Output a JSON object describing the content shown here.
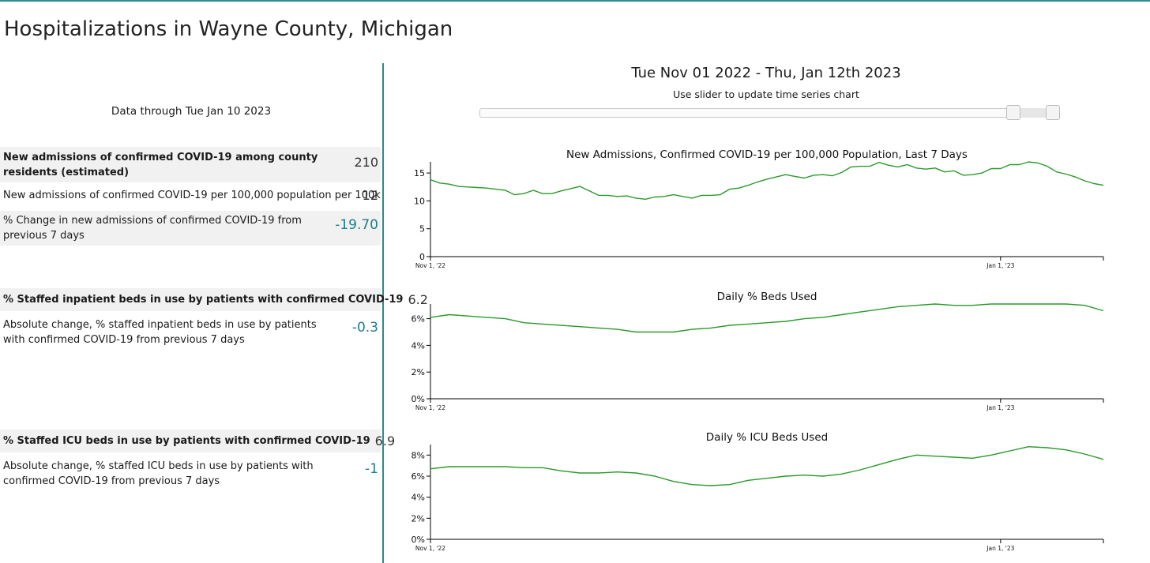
{
  "page": {
    "title": "Hospitalizations in Wayne County, Michigan"
  },
  "summary": {
    "data_through": "Data through Tue Jan 10 2023",
    "admissions": {
      "label": "New admissions of confirmed COVID-19 among county residents (estimated)",
      "value": "210"
    },
    "per100k": {
      "label": "New admissions of confirmed COVID-19 per 100,000 population per 100k",
      "value": "12"
    },
    "pct_change": {
      "label": "% Change in new admissions of confirmed COVID-19 from previous 7 days",
      "value": "-19.70"
    },
    "inpatient": {
      "label": "% Staffed inpatient beds in use by patients with confirmed COVID-19",
      "value": "6.2"
    },
    "inpatient_change": {
      "label": "Absolute change, % staffed inpatient beds in use by patients with confirmed COVID-19 from previous 7 days",
      "value": "-0.3"
    },
    "icu": {
      "label": "% Staffed ICU beds in use by patients with confirmed COVID-19",
      "value": "6.9"
    },
    "icu_change": {
      "label": "Absolute change, % staffed ICU beds in use by patients with confirmed COVID-19 from previous 7 days",
      "value": "-1"
    }
  },
  "controls": {
    "date_range": "Tue Nov 01 2022 - Thu, Jan 12th 2023",
    "slider_hint": "Use slider to update time series chart",
    "slider_range": {
      "start_fraction": 0.93,
      "end_fraction": 1.0
    }
  },
  "colors": {
    "line": "#2a9a2a",
    "accent": "#2e8a8a",
    "value_teal": "#1c7c8c"
  },
  "chart_data": [
    {
      "type": "line",
      "title": "New Admissions, Confirmed COVID-19 per 100,000 Population, Last 7 Days",
      "x_tick_labels": [
        "Nov 1, '22",
        "Jan 1, '23"
      ],
      "x_tick_days": [
        0,
        61
      ],
      "x_range_days": [
        0,
        72
      ],
      "ylim": [
        0,
        17
      ],
      "y_ticks": [
        0,
        5,
        10,
        15
      ],
      "y_tick_labels": [
        "0",
        "5",
        "10",
        "15"
      ],
      "x": [
        0,
        1,
        2,
        3,
        4,
        5,
        6,
        7,
        8,
        9,
        10,
        11,
        12,
        13,
        14,
        15,
        16,
        17,
        18,
        19,
        20,
        21,
        22,
        23,
        24,
        25,
        26,
        27,
        28,
        29,
        30,
        31,
        32,
        33,
        34,
        35,
        36,
        37,
        38,
        39,
        40,
        41,
        42,
        43,
        44,
        45,
        46,
        47,
        48,
        49,
        50,
        51,
        52,
        53,
        54,
        55,
        56,
        57,
        58,
        59,
        60,
        61,
        62,
        63,
        64,
        65,
        66,
        67,
        68,
        69,
        70,
        71,
        72
      ],
      "series": [
        {
          "values": [
            13.8,
            13.2,
            13.0,
            12.6,
            12.5,
            12.4,
            12.3,
            12.1,
            11.9,
            11.1,
            11.3,
            11.9,
            11.3,
            11.3,
            11.8,
            12.2,
            12.6,
            11.8,
            11.0,
            11.0,
            10.8,
            10.9,
            10.5,
            10.3,
            10.7,
            10.8,
            11.1,
            10.8,
            10.5,
            11.0,
            11.0,
            11.1,
            12.1,
            12.3,
            12.8,
            13.4,
            13.9,
            14.3,
            14.7,
            14.4,
            14.1,
            14.6,
            14.7,
            14.5,
            15.1,
            16.1,
            16.2,
            16.2,
            16.9,
            16.4,
            16.1,
            16.5,
            15.9,
            15.7,
            15.9,
            15.2,
            15.4,
            14.6,
            14.7,
            15.0,
            15.8,
            15.8,
            16.5,
            16.5,
            17.0,
            16.8,
            16.2,
            15.2,
            14.8,
            14.3,
            13.6,
            13.1,
            12.8
          ]
        }
      ]
    },
    {
      "type": "line",
      "title": "Daily % Beds Used",
      "x_tick_labels": [
        "Nov 1, '22",
        "Jan 1, '23"
      ],
      "x_tick_days": [
        0,
        61
      ],
      "x_range_days": [
        0,
        72
      ],
      "ylim": [
        0,
        7.1
      ],
      "y_ticks": [
        0,
        2,
        4,
        6
      ],
      "y_tick_labels": [
        "0%",
        "2%",
        "4%",
        "6%"
      ],
      "x": [
        0,
        2,
        4,
        6,
        8,
        10,
        12,
        14,
        16,
        18,
        20,
        22,
        24,
        26,
        28,
        30,
        32,
        34,
        36,
        38,
        40,
        42,
        44,
        46,
        48,
        50,
        52,
        54,
        56,
        58,
        60,
        62,
        64,
        66,
        68,
        70,
        72
      ],
      "series": [
        {
          "values": [
            6.1,
            6.3,
            6.2,
            6.1,
            6.0,
            5.7,
            5.6,
            5.5,
            5.4,
            5.3,
            5.2,
            5.0,
            5.0,
            5.0,
            5.2,
            5.3,
            5.5,
            5.6,
            5.7,
            5.8,
            6.0,
            6.1,
            6.3,
            6.5,
            6.7,
            6.9,
            7.0,
            7.1,
            7.0,
            7.0,
            7.1,
            7.1,
            7.1,
            7.1,
            7.1,
            7.0,
            6.6
          ]
        }
      ]
    },
    {
      "type": "line",
      "title": "Daily % ICU Beds Used",
      "x_tick_labels": [
        "Nov 1, '22",
        "Jan 1, '23"
      ],
      "x_tick_days": [
        0,
        61
      ],
      "x_range_days": [
        0,
        72
      ],
      "ylim": [
        0,
        9
      ],
      "y_ticks": [
        0,
        2,
        4,
        6,
        8
      ],
      "y_tick_labels": [
        "0%",
        "2%",
        "4%",
        "6%",
        "8%"
      ],
      "x": [
        0,
        2,
        4,
        6,
        8,
        10,
        12,
        14,
        16,
        18,
        20,
        22,
        24,
        26,
        28,
        30,
        32,
        34,
        36,
        38,
        40,
        42,
        44,
        46,
        48,
        50,
        52,
        54,
        56,
        58,
        60,
        62,
        64,
        66,
        68,
        70,
        72
      ],
      "series": [
        {
          "values": [
            6.7,
            6.9,
            6.9,
            6.9,
            6.9,
            6.8,
            6.8,
            6.5,
            6.3,
            6.3,
            6.4,
            6.3,
            6.0,
            5.5,
            5.2,
            5.1,
            5.2,
            5.6,
            5.8,
            6.0,
            6.1,
            6.0,
            6.2,
            6.6,
            7.1,
            7.6,
            8.0,
            7.9,
            7.8,
            7.7,
            8.0,
            8.4,
            8.8,
            8.7,
            8.5,
            8.1,
            7.6
          ]
        }
      ]
    }
  ]
}
